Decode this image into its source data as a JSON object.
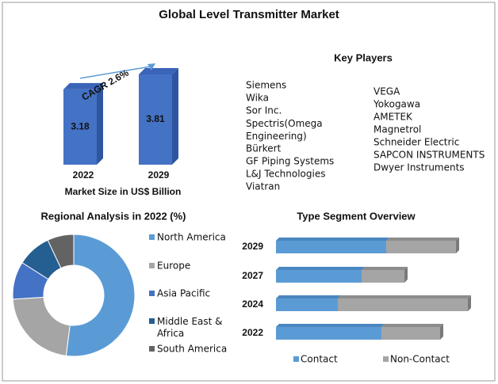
{
  "title": "Global Level Transmitter Market",
  "key_players": {
    "title": "Key Players",
    "column1": [
      "Siemens",
      "Wika",
      "Sor Inc.",
      "Spectris(Omega Engineering)",
      "Bürkert",
      "GF Piping Systems",
      "L&J Technologies",
      "Viatran"
    ],
    "column2": [
      "VEGA",
      "Yokogawa",
      "AMETEK",
      "Magnetrol",
      "Schneider Electric",
      "SAPCON INSTRUMENTS",
      "Dwyer Instruments"
    ]
  },
  "chart_data": [
    {
      "type": "bar",
      "categories": [
        "2022",
        "2029"
      ],
      "values": [
        3.18,
        3.81
      ],
      "color": "#4472c4",
      "xlabel": "Market Size in US$ Billion",
      "annotation": "CAGR 2.6%"
    },
    {
      "type": "donut",
      "title": "Regional Analysis in 2022 (%)",
      "categories": [
        "North America",
        "Europe",
        "Asia Pacific",
        "Middle East & Africa",
        "South America"
      ],
      "values": [
        52,
        22,
        10,
        9,
        7
      ],
      "colors": [
        "#5b9bd5",
        "#a5a5a5",
        "#4472c4",
        "#255e91",
        "#636363"
      ]
    },
    {
      "type": "stacked-hbar",
      "title": "Type Segment Overview",
      "categories": [
        "2029",
        "2027",
        "2024",
        "2022"
      ],
      "series": [
        {
          "name": "Contact",
          "color": "#5b9bd5",
          "values": [
            139,
            108,
            78,
            133
          ]
        },
        {
          "name": "Non-Contact",
          "color": "#a5a5a5",
          "values": [
            88,
            54,
            164,
            74
          ]
        }
      ]
    }
  ]
}
